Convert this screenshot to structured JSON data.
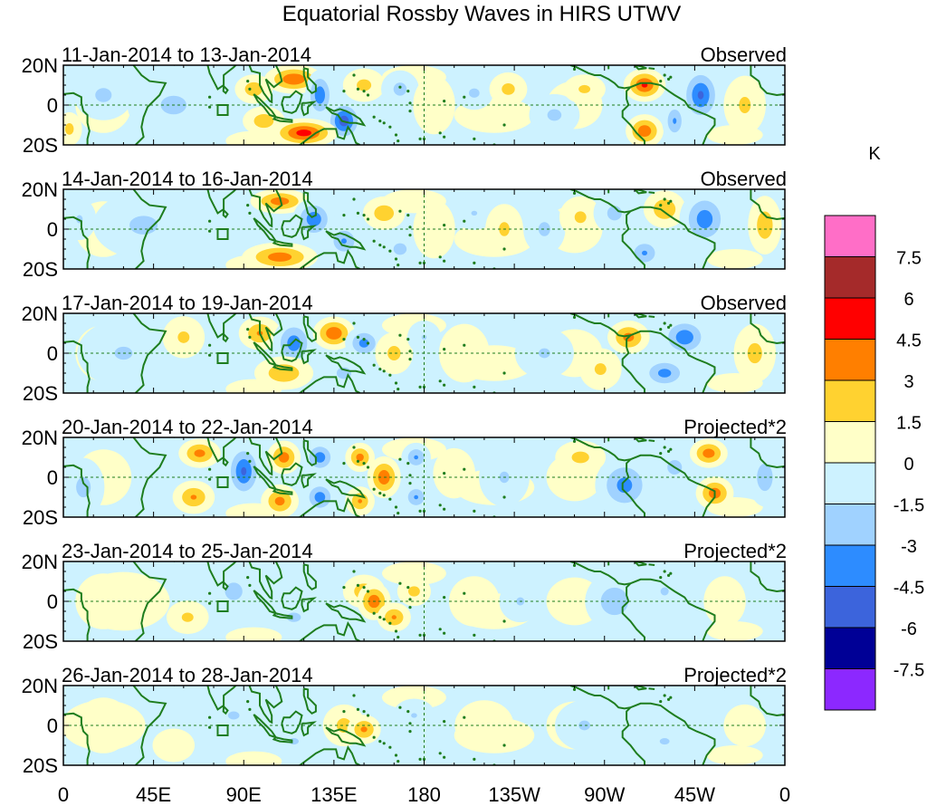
{
  "chart_data": {
    "type": "heatmap",
    "title": "Equatorial Rossby Waves in HIRS UTWV",
    "units_label": "K",
    "x_ticks": [
      "0",
      "45E",
      "90E",
      "135E",
      "180",
      "135W",
      "90W",
      "45W",
      "0"
    ],
    "x_tick_lons": [
      0,
      45,
      90,
      135,
      180,
      225,
      270,
      315,
      360
    ],
    "y_ticks": [
      "20N",
      "0",
      "20S"
    ],
    "y_tick_lats": [
      20,
      0,
      -20
    ],
    "xlim": [
      0,
      360
    ],
    "ylim": [
      -20,
      20
    ],
    "box_marker": {
      "lon": [
        77,
        82
      ],
      "lat": [
        -5,
        0
      ]
    },
    "colorbar": {
      "labels": [
        "7.5",
        "6",
        "4.5",
        "3",
        "1.5",
        "0",
        "-1.5",
        "-3",
        "-4.5",
        "-6",
        "-7.5"
      ],
      "levels": [
        7.5,
        6,
        4.5,
        3,
        1.5,
        0,
        -1.5,
        -3,
        -4.5,
        -6,
        -7.5
      ],
      "colors": [
        "#ff6ec7",
        "#a52a2a",
        "#ff0000",
        "#ff7f00",
        "#ffd230",
        "#ffffc8",
        "#cdf2ff",
        "#a0d2ff",
        "#2d8cff",
        "#3c64dc",
        "#000096",
        "#8c28ff"
      ]
    },
    "panels": [
      {
        "period": "11-Jan-2014 to 13-Jan-2014",
        "type_label": "Observed",
        "blobs": [
          {
            "lon": 55,
            "lat": 0,
            "w": 22,
            "h": 16,
            "v": -1.8
          },
          {
            "lon": 20,
            "lat": 5,
            "w": 14,
            "h": 12,
            "v": -1.8
          },
          {
            "lon": 3,
            "lat": -12,
            "w": 6,
            "h": 8,
            "v": 2
          },
          {
            "lon": 115,
            "lat": 13,
            "w": 14,
            "h": 7,
            "v": 4.2
          },
          {
            "lon": 128,
            "lat": 5,
            "w": 7,
            "h": 12,
            "v": -4
          },
          {
            "lon": 140,
            "lat": -8,
            "w": 9,
            "h": 10,
            "v": -5.2
          },
          {
            "lon": 120,
            "lat": -14,
            "w": 16,
            "h": 7,
            "v": 5
          },
          {
            "lon": 100,
            "lat": -8,
            "w": 10,
            "h": 7,
            "v": 2.5
          },
          {
            "lon": 95,
            "lat": 8,
            "w": 9,
            "h": 7,
            "v": 2.5
          },
          {
            "lon": 150,
            "lat": 10,
            "w": 10,
            "h": 8,
            "v": 2
          },
          {
            "lon": 168,
            "lat": 8,
            "w": 9,
            "h": 9,
            "v": -2
          },
          {
            "lon": 185,
            "lat": 0,
            "w": 10,
            "h": 14,
            "v": 1.2
          },
          {
            "lon": 205,
            "lat": 6,
            "w": 9,
            "h": 8,
            "v": -1.8
          },
          {
            "lon": 222,
            "lat": 8,
            "w": 9,
            "h": 8,
            "v": 2
          },
          {
            "lon": 245,
            "lat": -5,
            "w": 12,
            "h": 10,
            "v": -1.8
          },
          {
            "lon": 260,
            "lat": 8,
            "w": 10,
            "h": 7,
            "v": 1.8
          },
          {
            "lon": 290,
            "lat": 10,
            "w": 10,
            "h": 8,
            "v": 4.5
          },
          {
            "lon": 290,
            "lat": -13,
            "w": 9,
            "h": 8,
            "v": 4
          },
          {
            "lon": 318,
            "lat": 5,
            "w": 10,
            "h": 14,
            "v": -4.5
          },
          {
            "lon": 305,
            "lat": -8,
            "w": 6,
            "h": 10,
            "v": -3
          },
          {
            "lon": 340,
            "lat": 0,
            "w": 10,
            "h": 14,
            "v": 1.8
          }
        ]
      },
      {
        "period": "14-Jan-2014 to 16-Jan-2014",
        "type_label": "Observed",
        "blobs": [
          {
            "lon": 40,
            "lat": 2,
            "w": 24,
            "h": 16,
            "v": -1.8
          },
          {
            "lon": 8,
            "lat": 5,
            "w": 8,
            "h": 10,
            "v": -1.6
          },
          {
            "lon": 108,
            "lat": 14,
            "w": 14,
            "h": 6,
            "v": 3.8
          },
          {
            "lon": 125,
            "lat": 5,
            "w": 10,
            "h": 10,
            "v": -4
          },
          {
            "lon": 108,
            "lat": -14,
            "w": 18,
            "h": 7,
            "v": 3.8
          },
          {
            "lon": 140,
            "lat": -6,
            "w": 9,
            "h": 9,
            "v": -3
          },
          {
            "lon": 160,
            "lat": 8,
            "w": 10,
            "h": 8,
            "v": 2.5
          },
          {
            "lon": 168,
            "lat": -10,
            "w": 9,
            "h": 8,
            "v": -2
          },
          {
            "lon": 185,
            "lat": 0,
            "w": 10,
            "h": 14,
            "v": 1.2
          },
          {
            "lon": 205,
            "lat": 8,
            "w": 10,
            "h": 8,
            "v": -1.5
          },
          {
            "lon": 220,
            "lat": 0,
            "w": 9,
            "h": 12,
            "v": 1.8
          },
          {
            "lon": 240,
            "lat": 0,
            "w": 10,
            "h": 12,
            "v": -1.8
          },
          {
            "lon": 258,
            "lat": 6,
            "w": 10,
            "h": 10,
            "v": 1.8
          },
          {
            "lon": 275,
            "lat": 8,
            "w": 10,
            "h": 10,
            "v": -2
          },
          {
            "lon": 300,
            "lat": 10,
            "w": 10,
            "h": 9,
            "v": 2.8
          },
          {
            "lon": 320,
            "lat": 5,
            "w": 12,
            "h": 14,
            "v": -3.8
          },
          {
            "lon": 290,
            "lat": -12,
            "w": 9,
            "h": 8,
            "v": -3
          },
          {
            "lon": 350,
            "lat": 2,
            "w": 8,
            "h": 14,
            "v": 2.5
          }
        ]
      },
      {
        "period": "17-Jan-2014 to 19-Jan-2014",
        "type_label": "Observed",
        "blobs": [
          {
            "lon": 30,
            "lat": 0,
            "w": 22,
            "h": 16,
            "v": -1.6
          },
          {
            "lon": 60,
            "lat": 8,
            "w": 10,
            "h": 10,
            "v": 1.8
          },
          {
            "lon": 98,
            "lat": 10,
            "w": 10,
            "h": 8,
            "v": 3
          },
          {
            "lon": 115,
            "lat": 5,
            "w": 10,
            "h": 12,
            "v": -3.8
          },
          {
            "lon": 110,
            "lat": -10,
            "w": 14,
            "h": 8,
            "v": 2.8
          },
          {
            "lon": 135,
            "lat": 10,
            "w": 10,
            "h": 8,
            "v": 4.2
          },
          {
            "lon": 150,
            "lat": 5,
            "w": 9,
            "h": 8,
            "v": -3.5
          },
          {
            "lon": 140,
            "lat": -10,
            "w": 10,
            "h": 8,
            "v": -2
          },
          {
            "lon": 165,
            "lat": 0,
            "w": 9,
            "h": 10,
            "v": 2
          },
          {
            "lon": 180,
            "lat": 8,
            "w": 8,
            "h": 8,
            "v": -1.5
          },
          {
            "lon": 200,
            "lat": 0,
            "w": 12,
            "h": 14,
            "v": 1.2
          },
          {
            "lon": 240,
            "lat": 0,
            "w": 14,
            "h": 12,
            "v": -1.6
          },
          {
            "lon": 268,
            "lat": -8,
            "w": 10,
            "h": 10,
            "v": 1.8
          },
          {
            "lon": 282,
            "lat": 8,
            "w": 10,
            "h": 8,
            "v": 3.5
          },
          {
            "lon": 310,
            "lat": 8,
            "w": 12,
            "h": 10,
            "v": -4
          },
          {
            "lon": 300,
            "lat": -10,
            "w": 12,
            "h": 8,
            "v": -3.5
          },
          {
            "lon": 345,
            "lat": 0,
            "w": 10,
            "h": 14,
            "v": 2
          }
        ]
      },
      {
        "period": "20-Jan-2014 to 22-Jan-2014",
        "type_label": "Projected*2",
        "blobs": [
          {
            "lon": 10,
            "lat": -5,
            "w": 10,
            "h": 14,
            "v": -2
          },
          {
            "lon": 68,
            "lat": 12,
            "w": 10,
            "h": 7,
            "v": 3.5
          },
          {
            "lon": 65,
            "lat": -10,
            "w": 10,
            "h": 8,
            "v": 3
          },
          {
            "lon": 90,
            "lat": 3,
            "w": 9,
            "h": 14,
            "v": -4.5
          },
          {
            "lon": 110,
            "lat": 10,
            "w": 8,
            "h": 8,
            "v": 3.8
          },
          {
            "lon": 108,
            "lat": -12,
            "w": 9,
            "h": 8,
            "v": 3.5
          },
          {
            "lon": 128,
            "lat": 10,
            "w": 8,
            "h": 8,
            "v": -3.8
          },
          {
            "lon": 128,
            "lat": -10,
            "w": 8,
            "h": 8,
            "v": -3.8
          },
          {
            "lon": 148,
            "lat": 10,
            "w": 7,
            "h": 7,
            "v": 3.5
          },
          {
            "lon": 148,
            "lat": -12,
            "w": 7,
            "h": 7,
            "v": 3
          },
          {
            "lon": 160,
            "lat": 0,
            "w": 8,
            "h": 10,
            "v": 4
          },
          {
            "lon": 176,
            "lat": 10,
            "w": 7,
            "h": 7,
            "v": -3
          },
          {
            "lon": 176,
            "lat": -10,
            "w": 7,
            "h": 7,
            "v": -3
          },
          {
            "lon": 195,
            "lat": 2,
            "w": 10,
            "h": 12,
            "v": 1.4
          },
          {
            "lon": 220,
            "lat": 0,
            "w": 12,
            "h": 14,
            "v": -1.6
          },
          {
            "lon": 258,
            "lat": 10,
            "w": 12,
            "h": 8,
            "v": 2
          },
          {
            "lon": 280,
            "lat": -4,
            "w": 14,
            "h": 14,
            "v": -3.5
          },
          {
            "lon": 305,
            "lat": 5,
            "w": 10,
            "h": 10,
            "v": -2
          },
          {
            "lon": 322,
            "lat": 12,
            "w": 9,
            "h": 7,
            "v": 3.8
          },
          {
            "lon": 325,
            "lat": -8,
            "w": 9,
            "h": 8,
            "v": 3.8
          },
          {
            "lon": 350,
            "lat": 0,
            "w": 8,
            "h": 14,
            "v": -2.5
          }
        ]
      },
      {
        "period": "23-Jan-2014 to 25-Jan-2014",
        "type_label": "Projected*2",
        "blobs": [
          {
            "lon": 30,
            "lat": 0,
            "w": 22,
            "h": 14,
            "v": 1.2
          },
          {
            "lon": 62,
            "lat": -8,
            "w": 10,
            "h": 8,
            "v": 1.8
          },
          {
            "lon": 85,
            "lat": 5,
            "w": 12,
            "h": 12,
            "v": -2
          },
          {
            "lon": 115,
            "lat": -8,
            "w": 12,
            "h": 8,
            "v": -1.8
          },
          {
            "lon": 150,
            "lat": 5,
            "w": 10,
            "h": 8,
            "v": 2.5
          },
          {
            "lon": 155,
            "lat": 0,
            "w": 8,
            "h": 9,
            "v": 4
          },
          {
            "lon": 165,
            "lat": -8,
            "w": 8,
            "h": 7,
            "v": 3
          },
          {
            "lon": 175,
            "lat": 5,
            "w": 8,
            "h": 7,
            "v": 2
          },
          {
            "lon": 205,
            "lat": 0,
            "w": 12,
            "h": 12,
            "v": 1.2
          },
          {
            "lon": 228,
            "lat": 0,
            "w": 10,
            "h": 10,
            "v": -1.6
          },
          {
            "lon": 275,
            "lat": 0,
            "w": 14,
            "h": 14,
            "v": -2.5
          },
          {
            "lon": 300,
            "lat": 5,
            "w": 10,
            "h": 10,
            "v": -1.6
          },
          {
            "lon": 330,
            "lat": 0,
            "w": 10,
            "h": 12,
            "v": 1.4
          }
        ]
      },
      {
        "period": "26-Jan-2014 to 28-Jan-2014",
        "type_label": "Projected*2",
        "blobs": [
          {
            "lon": 20,
            "lat": 0,
            "w": 20,
            "h": 12,
            "v": 1.2
          },
          {
            "lon": 55,
            "lat": -10,
            "w": 10,
            "h": 8,
            "v": 1.4
          },
          {
            "lon": 85,
            "lat": 5,
            "w": 14,
            "h": 10,
            "v": -1.6
          },
          {
            "lon": 115,
            "lat": -8,
            "w": 12,
            "h": 8,
            "v": -1.6
          },
          {
            "lon": 140,
            "lat": 0,
            "w": 10,
            "h": 10,
            "v": 2
          },
          {
            "lon": 150,
            "lat": -2,
            "w": 8,
            "h": 7,
            "v": 3.2
          },
          {
            "lon": 175,
            "lat": 5,
            "w": 10,
            "h": 8,
            "v": -1.5
          },
          {
            "lon": 210,
            "lat": 0,
            "w": 14,
            "h": 12,
            "v": 1.2
          },
          {
            "lon": 260,
            "lat": 0,
            "w": 14,
            "h": 12,
            "v": -1.6
          },
          {
            "lon": 300,
            "lat": -8,
            "w": 12,
            "h": 8,
            "v": -1.6
          },
          {
            "lon": 340,
            "lat": 0,
            "w": 10,
            "h": 10,
            "v": 1.2
          }
        ]
      }
    ]
  }
}
